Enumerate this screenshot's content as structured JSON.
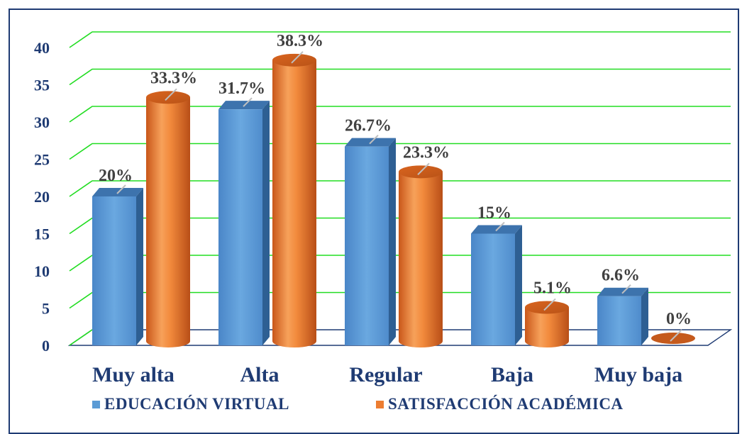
{
  "chart_data": {
    "type": "bar",
    "categories": [
      "Muy alta",
      "Alta",
      "Regular",
      "Baja",
      "Muy baja"
    ],
    "series": [
      {
        "name": "EDUCACIÓN VIRTUAL",
        "values": [
          20,
          31.7,
          26.7,
          15,
          6.6
        ],
        "labels": [
          "20%",
          "31.7%",
          "26.7%",
          "15%",
          "6.6%"
        ],
        "color": "#5b9bd5",
        "shape": "box"
      },
      {
        "name": "SATISFACCIÓN ACADÉMICA",
        "values": [
          33.3,
          38.3,
          23.3,
          5.1,
          0
        ],
        "labels": [
          "33.3%",
          "38.3%",
          "23.3%",
          "5.1%",
          "0%"
        ],
        "color": "#ed7d31",
        "shape": "cylinder"
      }
    ],
    "y_ticks": [
      "0",
      "5",
      "10",
      "15",
      "20",
      "25",
      "30",
      "35",
      "40"
    ],
    "ylim": [
      0,
      40
    ],
    "grid": true,
    "grid_color": "#22dd22",
    "legend_position": "bottom",
    "title": "",
    "xlabel": "",
    "ylabel": ""
  }
}
